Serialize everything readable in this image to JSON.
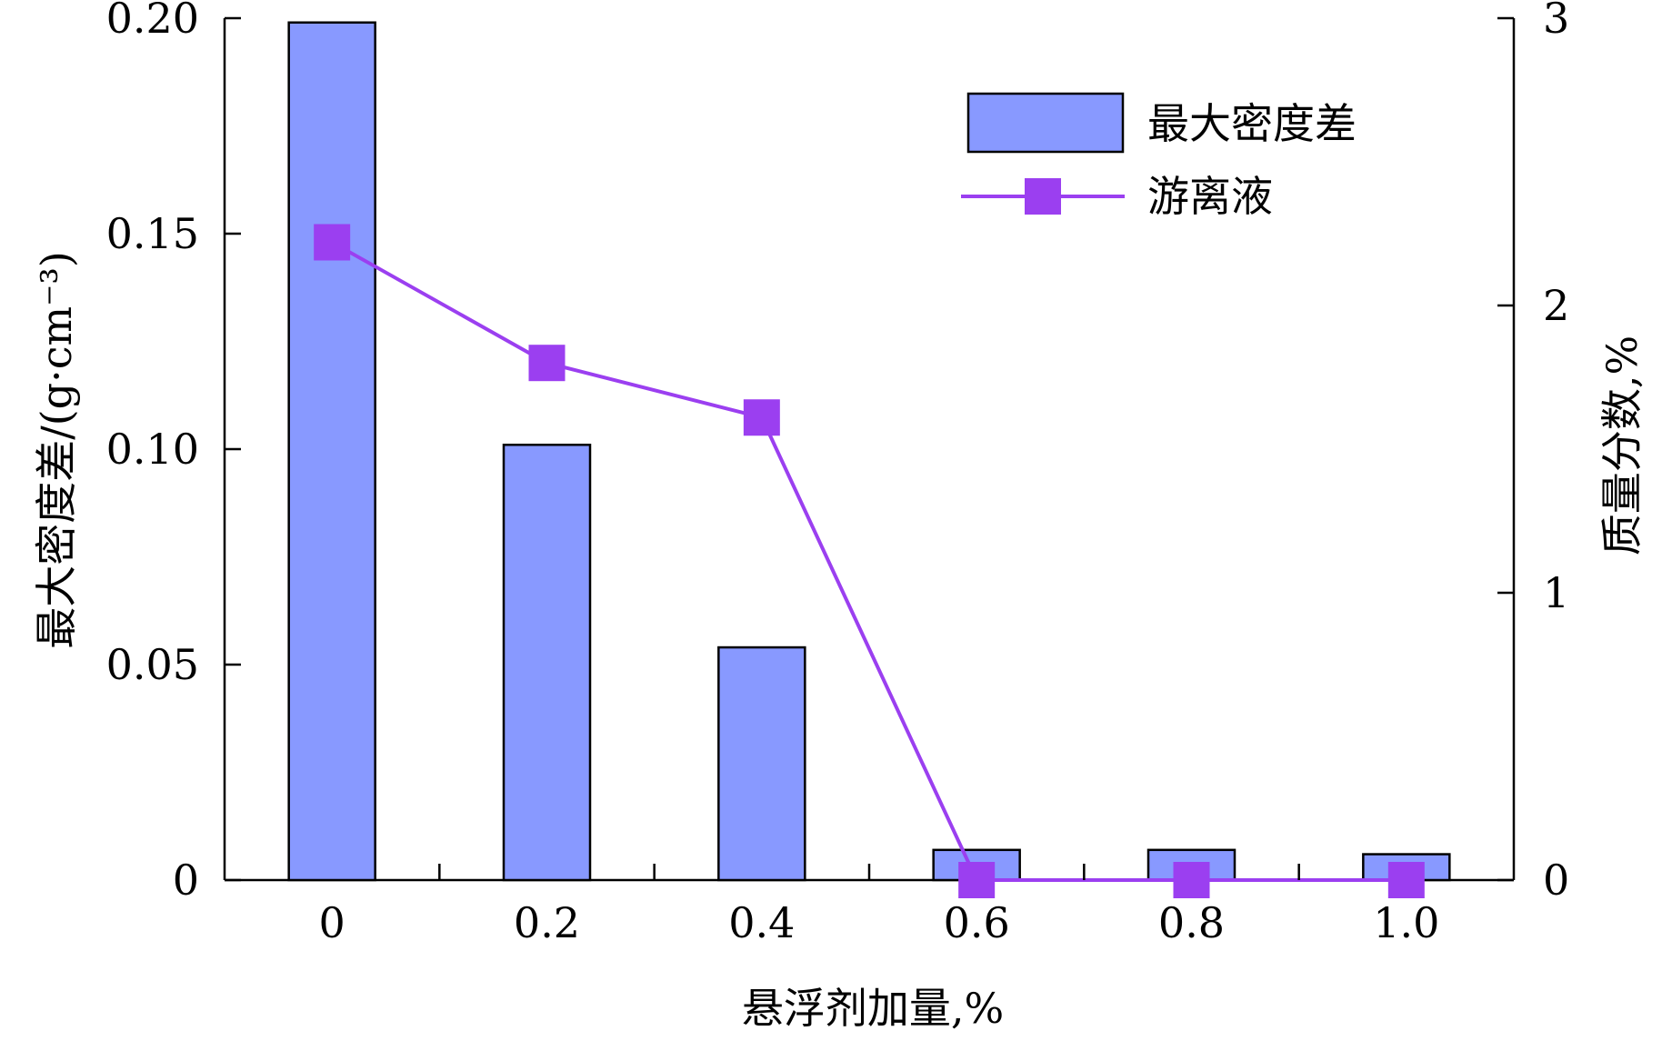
{
  "chart_data": {
    "type": "bar",
    "categories": [
      "0",
      "0.2",
      "0.4",
      "0.6",
      "0.8",
      "1.0"
    ],
    "xlabel": "悬浮剂加量,%",
    "ylabel": "最大密度差/(g·cm⁻³)",
    "y2label": "质量分数,%",
    "ylim": [
      0,
      0.2
    ],
    "y2lim": [
      0,
      3
    ],
    "yticks": [
      "0",
      "0.05",
      "0.10",
      "0.15",
      "0.20"
    ],
    "y2ticks": [
      "0",
      "1",
      "2",
      "3"
    ],
    "legend_position": "top-right",
    "grid": false,
    "series": [
      {
        "name": "最大密度差",
        "type": "bar",
        "axis": "left",
        "color": "#8899ff",
        "values": [
          0.199,
          0.101,
          0.054,
          0.007,
          0.007,
          0.006
        ]
      },
      {
        "name": "游离液",
        "type": "line",
        "axis": "right",
        "color": "#9b3ff0",
        "values": [
          2.22,
          1.8,
          1.61,
          0.0,
          0.0,
          0.0
        ]
      }
    ]
  }
}
